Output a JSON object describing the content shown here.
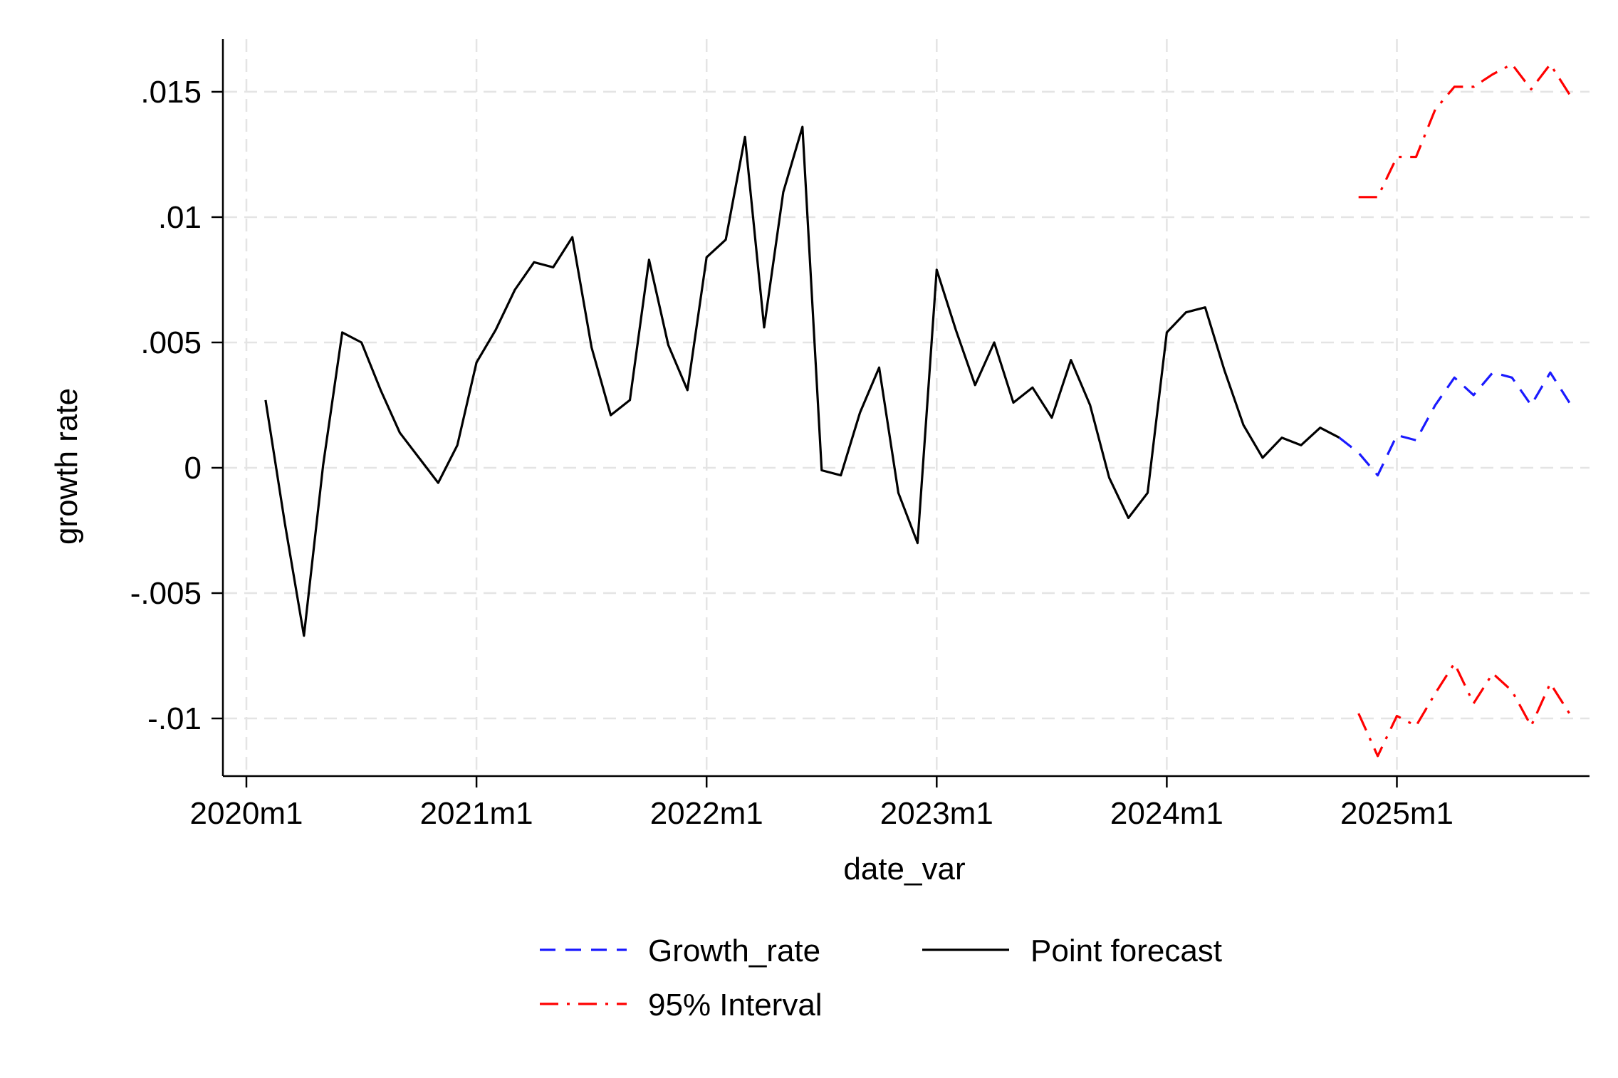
{
  "chart_data": {
    "type": "line",
    "title": "",
    "xlabel": "date_var",
    "ylabel": "growth rate",
    "x_ticks": [
      "2020m1",
      "2021m1",
      "2022m1",
      "2023m1",
      "2024m1",
      "2025m1"
    ],
    "y_ticks": [
      {
        "value": -0.01,
        "label": "-.01"
      },
      {
        "value": -0.005,
        "label": "-.005"
      },
      {
        "value": 0,
        "label": "0"
      },
      {
        "value": 0.005,
        "label": ".005"
      },
      {
        "value": 0.01,
        "label": ".01"
      },
      {
        "value": 0.015,
        "label": ".015"
      }
    ],
    "xlim": [
      "2020m1",
      "2025m12"
    ],
    "ylim": [
      -0.0123,
      0.0171
    ],
    "grid": true,
    "legend_position": "bottom",
    "series": [
      {
        "name": "Point forecast",
        "color": "#000000",
        "style": "solid",
        "x": [
          "2020m2",
          "2020m3",
          "2020m4",
          "2020m5",
          "2020m6",
          "2020m7",
          "2020m8",
          "2020m9",
          "2020m10",
          "2020m11",
          "2020m12",
          "2021m1",
          "2021m2",
          "2021m3",
          "2021m4",
          "2021m5",
          "2021m6",
          "2021m7",
          "2021m8",
          "2021m9",
          "2021m10",
          "2021m11",
          "2021m12",
          "2022m1",
          "2022m2",
          "2022m3",
          "2022m4",
          "2022m5",
          "2022m6",
          "2022m7",
          "2022m8",
          "2022m9",
          "2022m10",
          "2022m11",
          "2022m12",
          "2023m1",
          "2023m2",
          "2023m3",
          "2023m4",
          "2023m5",
          "2023m6",
          "2023m7",
          "2023m8",
          "2023m9",
          "2023m10",
          "2023m11",
          "2023m12",
          "2024m1",
          "2024m2",
          "2024m3",
          "2024m4",
          "2024m5",
          "2024m6",
          "2024m7",
          "2024m8",
          "2024m9",
          "2024m10"
        ],
        "y": [
          0.0027,
          -0.0022,
          -0.0067,
          0.0001,
          0.0054,
          0.005,
          0.0031,
          0.0014,
          0.0004,
          -0.0006,
          0.0009,
          0.0042,
          0.0055,
          0.0071,
          0.0082,
          0.008,
          0.0092,
          0.0048,
          0.0021,
          0.0027,
          0.0083,
          0.0049,
          0.0031,
          0.0084,
          0.0091,
          0.0132,
          0.0056,
          0.011,
          0.0136,
          -0.0001,
          -0.0003,
          0.0022,
          0.004,
          -0.001,
          -0.003,
          0.0079,
          0.0055,
          0.0033,
          0.005,
          0.0026,
          0.0032,
          0.002,
          0.0043,
          0.0025,
          -0.0004,
          -0.002,
          -0.001,
          0.0054,
          0.0062,
          0.0064,
          0.0039,
          0.0017,
          0.0004,
          0.0012,
          0.0009,
          0.0016,
          0.0012
        ]
      },
      {
        "name": "Growth_rate",
        "color": "#1a1aff",
        "style": "dashed",
        "x": [
          "2024m10",
          "2024m11",
          "2024m12",
          "2025m1",
          "2025m2",
          "2025m3",
          "2025m4",
          "2025m5",
          "2025m6",
          "2025m7",
          "2025m8",
          "2025m9",
          "2025m10"
        ],
        "y": [
          0.0012,
          0.0006,
          -0.0003,
          0.0013,
          0.0011,
          0.0025,
          0.0036,
          0.0029,
          0.0038,
          0.0036,
          0.0025,
          0.0038,
          0.0026
        ]
      },
      {
        "name": "95% Interval",
        "color": "#ff0000",
        "style": "dashdot",
        "x": [
          "2024m11",
          "2024m12",
          "2025m1",
          "2025m2",
          "2025m3",
          "2025m4",
          "2025m5",
          "2025m6",
          "2025m7",
          "2025m8",
          "2025m9",
          "2025m10"
        ],
        "y": [
          0.0108,
          0.0108,
          0.0124,
          0.0124,
          0.0143,
          0.0152,
          0.0152,
          0.0157,
          0.0161,
          0.0151,
          0.0161,
          0.0149
        ]
      },
      {
        "name": "95% Interval",
        "color": "#ff0000",
        "style": "dashdot",
        "show_in_legend": false,
        "x": [
          "2024m11",
          "2024m12",
          "2025m1",
          "2025m2",
          "2025m3",
          "2025m4",
          "2025m5",
          "2025m6",
          "2025m7",
          "2025m8",
          "2025m9",
          "2025m10"
        ],
        "y": [
          -0.0098,
          -0.0115,
          -0.0099,
          -0.0103,
          -0.009,
          -0.0078,
          -0.0094,
          -0.0082,
          -0.0089,
          -0.0103,
          -0.0086,
          -0.0098
        ]
      }
    ],
    "legend": [
      {
        "label": "Growth_rate",
        "color": "#1a1aff",
        "style": "dashed"
      },
      {
        "label": "Point forecast",
        "color": "#000000",
        "style": "solid"
      },
      {
        "label": "95% Interval",
        "color": "#ff0000",
        "style": "dashdot"
      }
    ]
  }
}
